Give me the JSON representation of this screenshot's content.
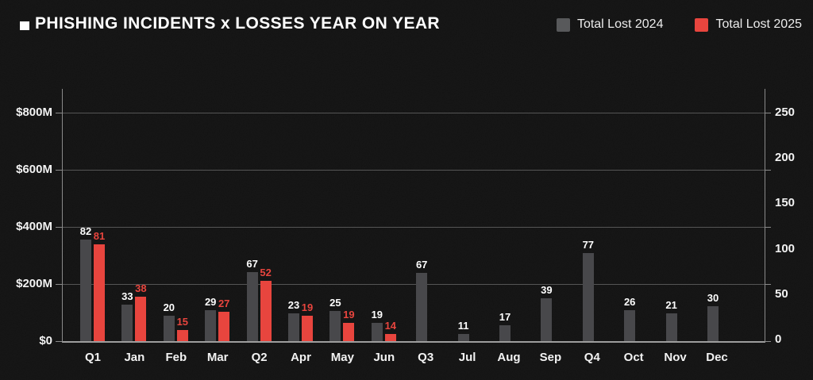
{
  "header": {
    "title": "PHISHING INCIDENTS x LOSSES YEAR ON YEAR"
  },
  "chart_data": {
    "type": "bar",
    "title": "PHISHING INCIDENTS x LOSSES YEAR ON YEAR",
    "categories": [
      "Q1",
      "Jan",
      "Feb",
      "Mar",
      "Q2",
      "Apr",
      "May",
      "Jun",
      "Q3",
      "Jul",
      "Aug",
      "Sep",
      "Q4",
      "Oct",
      "Nov",
      "Dec"
    ],
    "series": [
      {
        "name": "Total Lost 2024",
        "color": "#48484b",
        "legend_swatch_color": "#58595b",
        "label_color": "#ffffff",
        "incident_labels": [
          82,
          33,
          20,
          29,
          67,
          23,
          25,
          19,
          67,
          11,
          17,
          39,
          77,
          26,
          21,
          30
        ],
        "losses_est_musd": [
          355,
          128,
          89,
          108,
          242,
          97,
          105,
          64,
          239,
          25,
          55,
          150,
          308,
          108,
          97,
          122
        ]
      },
      {
        "name": "Total Lost 2025",
        "color": "#e8453e",
        "legend_swatch_color": "#e8453e",
        "label_color": "#e8453e",
        "incident_labels": [
          81,
          38,
          15,
          27,
          52,
          19,
          19,
          14,
          null,
          null,
          null,
          null,
          null,
          null,
          null,
          null
        ],
        "losses_est_musd": [
          340,
          156,
          39,
          103,
          211,
          89,
          64,
          25,
          null,
          null,
          null,
          null,
          null,
          null,
          null,
          null
        ]
      }
    ],
    "left_axis": {
      "unit": "$M",
      "tick_labels": [
        "$800M",
        "$600M",
        "$400M",
        "$200M",
        "$0"
      ],
      "tick_values": [
        800,
        600,
        400,
        200,
        0
      ],
      "max": 800
    },
    "right_axis": {
      "tick_labels": [
        "250",
        "200",
        "150",
        "100",
        "50",
        "0"
      ],
      "tick_values": [
        250,
        200,
        150,
        100,
        50,
        0
      ],
      "max": 250
    },
    "legend_position": "top-right",
    "grid": "horizontal"
  }
}
